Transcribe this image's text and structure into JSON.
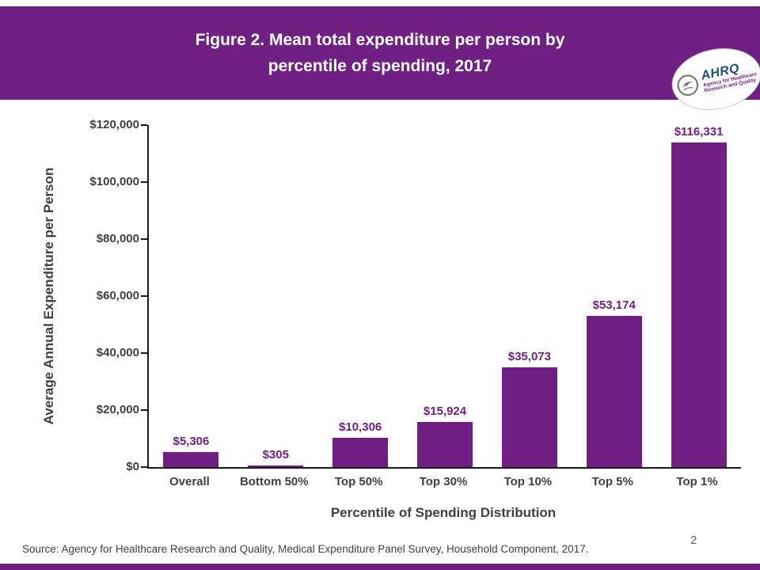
{
  "header": {
    "title_line1": "Figure 2. Mean total expenditure per person by",
    "title_line2": "percentile of spending, 2017",
    "logo": {
      "name": "AHRQ",
      "tagline1": "Agency for Healthcare",
      "tagline2": "Research and Quality"
    }
  },
  "chart_data": {
    "type": "bar",
    "categories": [
      "Overall",
      "Bottom 50%",
      "Top 50%",
      "Top 30%",
      "Top 10%",
      "Top 5%",
      "Top 1%"
    ],
    "values": [
      5306,
      305,
      10306,
      15924,
      35073,
      53174,
      116331
    ],
    "value_labels": [
      "$5,306",
      "$305",
      "$10,306",
      "$15,924",
      "$35,073",
      "$53,174",
      "$116,331"
    ],
    "title": "Figure 2. Mean total expenditure per person by percentile of spending, 2017",
    "xlabel": "Percentile of Spending Distribution",
    "ylabel": "Average Annual Expenditure per Person",
    "ylim": [
      0,
      120000
    ],
    "ytick_interval": 20000,
    "ytick_labels": [
      "$0",
      "$20,000",
      "$40,000",
      "$60,000",
      "$80,000",
      "$100,000",
      "$120,000"
    ],
    "bar_color": "#702082",
    "legend": "none",
    "grid": "off"
  },
  "footer": {
    "source": "Source: Agency for Healthcare Research and Quality, Medical Expenditure Panel Survey, Household Component, 2017.",
    "page_number": "2"
  },
  "colors": {
    "accent": "#702082",
    "axis_text": "#404040",
    "background": "#ffffff"
  }
}
